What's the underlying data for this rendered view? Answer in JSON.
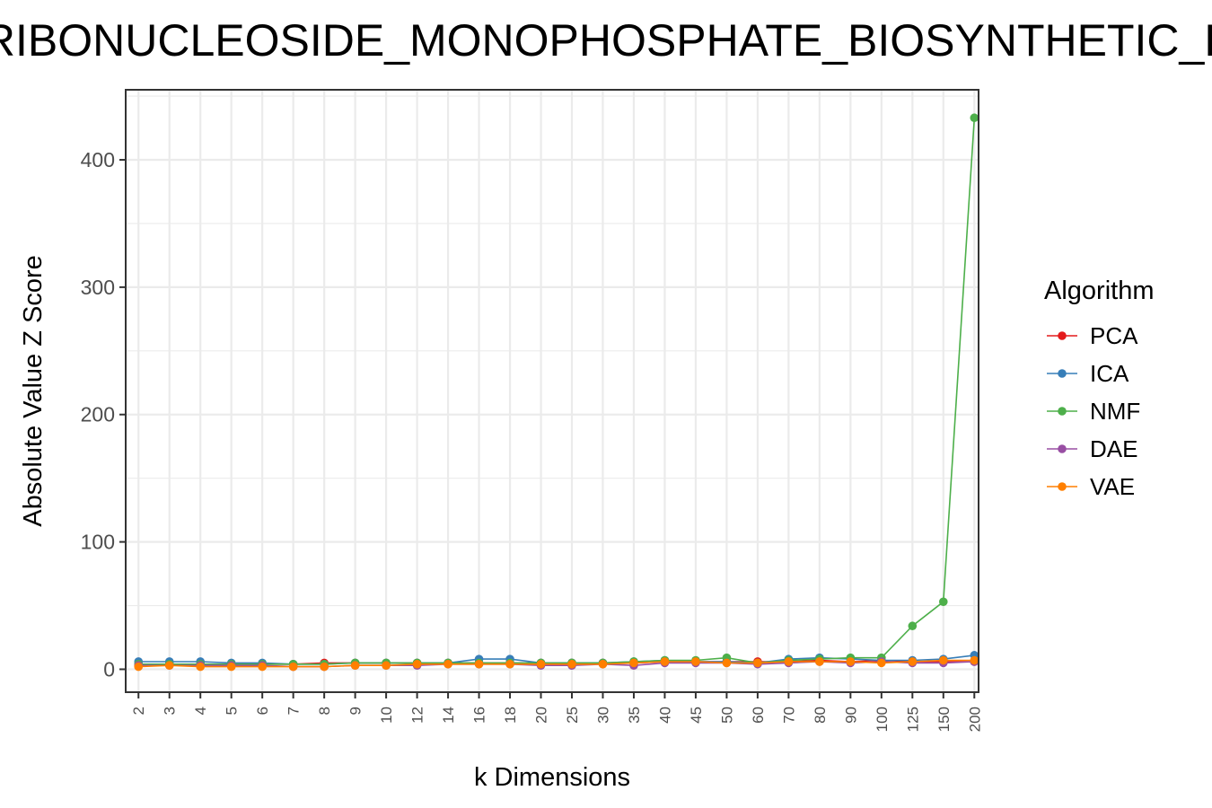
{
  "chart_data": {
    "type": "line",
    "title": "PURINE_RIBONUCLEOSIDE_MONOPHOSPHATE_BIOSYNTHETIC_PROCESS",
    "xlabel": "k Dimensions",
    "ylabel": "Absolute Value Z Score",
    "categories": [
      "2",
      "3",
      "4",
      "5",
      "6",
      "7",
      "8",
      "9",
      "10",
      "12",
      "14",
      "16",
      "18",
      "20",
      "25",
      "30",
      "35",
      "40",
      "45",
      "50",
      "60",
      "70",
      "80",
      "90",
      "100",
      "125",
      "150",
      "200"
    ],
    "yticks": [
      0,
      100,
      200,
      300,
      400
    ],
    "ylim": [
      -18,
      455
    ],
    "grid": true,
    "legend": {
      "title": "Algorithm",
      "position": "right"
    },
    "series": [
      {
        "name": "PCA",
        "color": "#e41a1c",
        "values": [
          3,
          4,
          4,
          4,
          4,
          4,
          5,
          5,
          5,
          5,
          5,
          5,
          5,
          5,
          5,
          5,
          5,
          6,
          6,
          6,
          6,
          6,
          7,
          6,
          7,
          6,
          6,
          6
        ]
      },
      {
        "name": "ICA",
        "color": "#377eb8",
        "values": [
          6,
          6,
          6,
          5,
          5,
          4,
          4,
          5,
          5,
          5,
          5,
          8,
          8,
          5,
          5,
          5,
          6,
          7,
          6,
          6,
          5,
          8,
          9,
          8,
          7,
          7,
          8,
          11
        ]
      },
      {
        "name": "NMF",
        "color": "#4daf4a",
        "values": [
          4,
          4,
          4,
          4,
          4,
          4,
          4,
          5,
          5,
          5,
          5,
          5,
          5,
          5,
          5,
          5,
          6,
          7,
          7,
          9,
          5,
          7,
          8,
          9,
          9,
          34,
          53,
          433
        ]
      },
      {
        "name": "DAE",
        "color": "#984ea3",
        "values": [
          3,
          3,
          3,
          3,
          3,
          2,
          2,
          3,
          3,
          3,
          4,
          4,
          4,
          3,
          3,
          4,
          3,
          5,
          5,
          5,
          4,
          5,
          6,
          5,
          6,
          5,
          5,
          6
        ]
      },
      {
        "name": "VAE",
        "color": "#ff7f00",
        "values": [
          2,
          3,
          2,
          2,
          2,
          2,
          2,
          3,
          3,
          4,
          4,
          4,
          4,
          4,
          4,
          4,
          5,
          6,
          6,
          5,
          5,
          6,
          6,
          6,
          5,
          6,
          7,
          7
        ]
      }
    ]
  }
}
